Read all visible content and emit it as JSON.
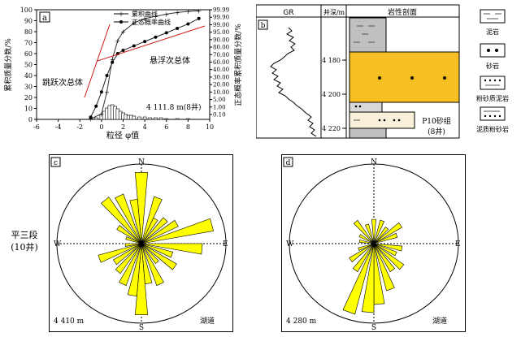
{
  "panel_a": {
    "tag": "a",
    "ylabel_left": "累积质量分数/%",
    "ylabel_right": "正态概率累积质量分数/%",
    "xlabel": "粒径 φ值",
    "x_ticks": [
      "-6",
      "-4",
      "-2",
      "0",
      "2",
      "4",
      "6",
      "8",
      "10"
    ],
    "y_ticks_left": [
      "0",
      "10",
      "20",
      "30",
      "40",
      "50",
      "60",
      "70",
      "80",
      "90",
      "100"
    ],
    "y_ticks_right": [
      "0.10",
      "1.00",
      "5.00",
      "10.00",
      "20.00",
      "30.00",
      "40.00",
      "60.00",
      "70.00",
      "80.00",
      "90.00",
      "95.00",
      "99.00",
      "99.90",
      "99.99"
    ],
    "legend": [
      "累积曲线",
      "正态概率曲线"
    ],
    "annot_suspension": "悬浮次总体",
    "annot_saltation": "跳跃次总体",
    "sample_label": "4 111.8 m(8井)"
  },
  "panel_b": {
    "tag": "b",
    "col_gr": "GR",
    "col_depth": "井深/m",
    "col_litho": "岩性剖面",
    "depth_ticks": [
      "4 180",
      "4 200",
      "4 220"
    ],
    "unit_label": "P10砂组",
    "well_label": "(8井)",
    "legend": [
      "泥岩",
      "砂岩",
      "粉砂质泥岩",
      "泥质粉砂岩"
    ]
  },
  "rose_c": {
    "tag": "c",
    "N": "N",
    "S": "S",
    "E": "E",
    "W": "W",
    "depth": "4 410 m",
    "env": "湖道"
  },
  "rose_d": {
    "tag": "d",
    "N": "N",
    "S": "S",
    "E": "E",
    "W": "W",
    "depth": "4 280 m",
    "env": "湖道"
  },
  "side_label_1": "平三段",
  "side_label_2": "(10井)",
  "colors": {
    "sand": "#f7bf24",
    "rose": "#ffff00",
    "mud": "#c0c0c0",
    "curve_red": "#d11a1a"
  }
}
